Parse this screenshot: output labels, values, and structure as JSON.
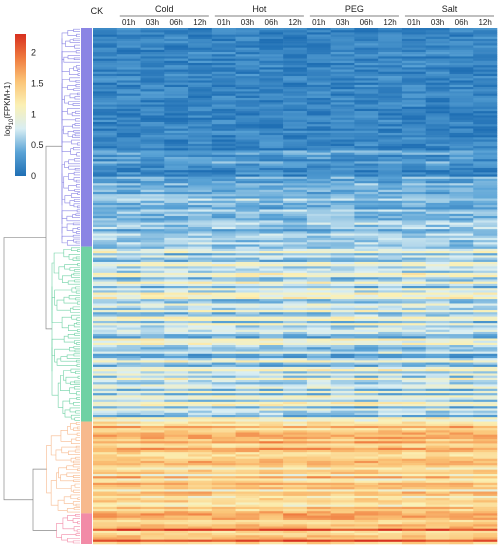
{
  "chart_data": {
    "type": "heatmap",
    "colorbar": {
      "title": "log10(FPKM+1)",
      "title_base": "log",
      "title_sub": "10",
      "title_rest": "(FPKM+1)",
      "ticks": [
        "0",
        "0.5",
        "1",
        "1.5",
        "2"
      ],
      "range": [
        0,
        2.3
      ],
      "colors": [
        "#1f6fb4",
        "#5aa3d6",
        "#d9eef3",
        "#fbf0b4",
        "#fbc477",
        "#ef7a3e",
        "#d7301f"
      ]
    },
    "columns": {
      "control_label": "CK",
      "groups": [
        {
          "name": "Cold",
          "timepoints": [
            "01h",
            "03h",
            "06h",
            "12h"
          ]
        },
        {
          "name": "Hot",
          "timepoints": [
            "01h",
            "03h",
            "06h",
            "12h"
          ]
        },
        {
          "name": "PEG",
          "timepoints": [
            "01h",
            "03h",
            "06h",
            "12h"
          ]
        },
        {
          "name": "Salt",
          "timepoints": [
            "01h",
            "03h",
            "06h",
            "12h"
          ]
        }
      ]
    },
    "clusters": [
      {
        "color": "#8a85e4",
        "rows": 100,
        "mean_level": 0.28
      },
      {
        "color": "#6fd1a4",
        "rows": 80,
        "mean_level": 0.7
      },
      {
        "color": "#f7b98d",
        "rows": 42,
        "mean_level": 1.45
      },
      {
        "color": "#f28ba7",
        "rows": 14,
        "mean_level": 1.7
      }
    ],
    "description_of_pattern": "Rows clustered by dendrogram on the left; first cluster predominantly low expression (blue), second cluster mixed blue/light, third cluster mid (yellow), fourth cluster high (orange/red)."
  }
}
